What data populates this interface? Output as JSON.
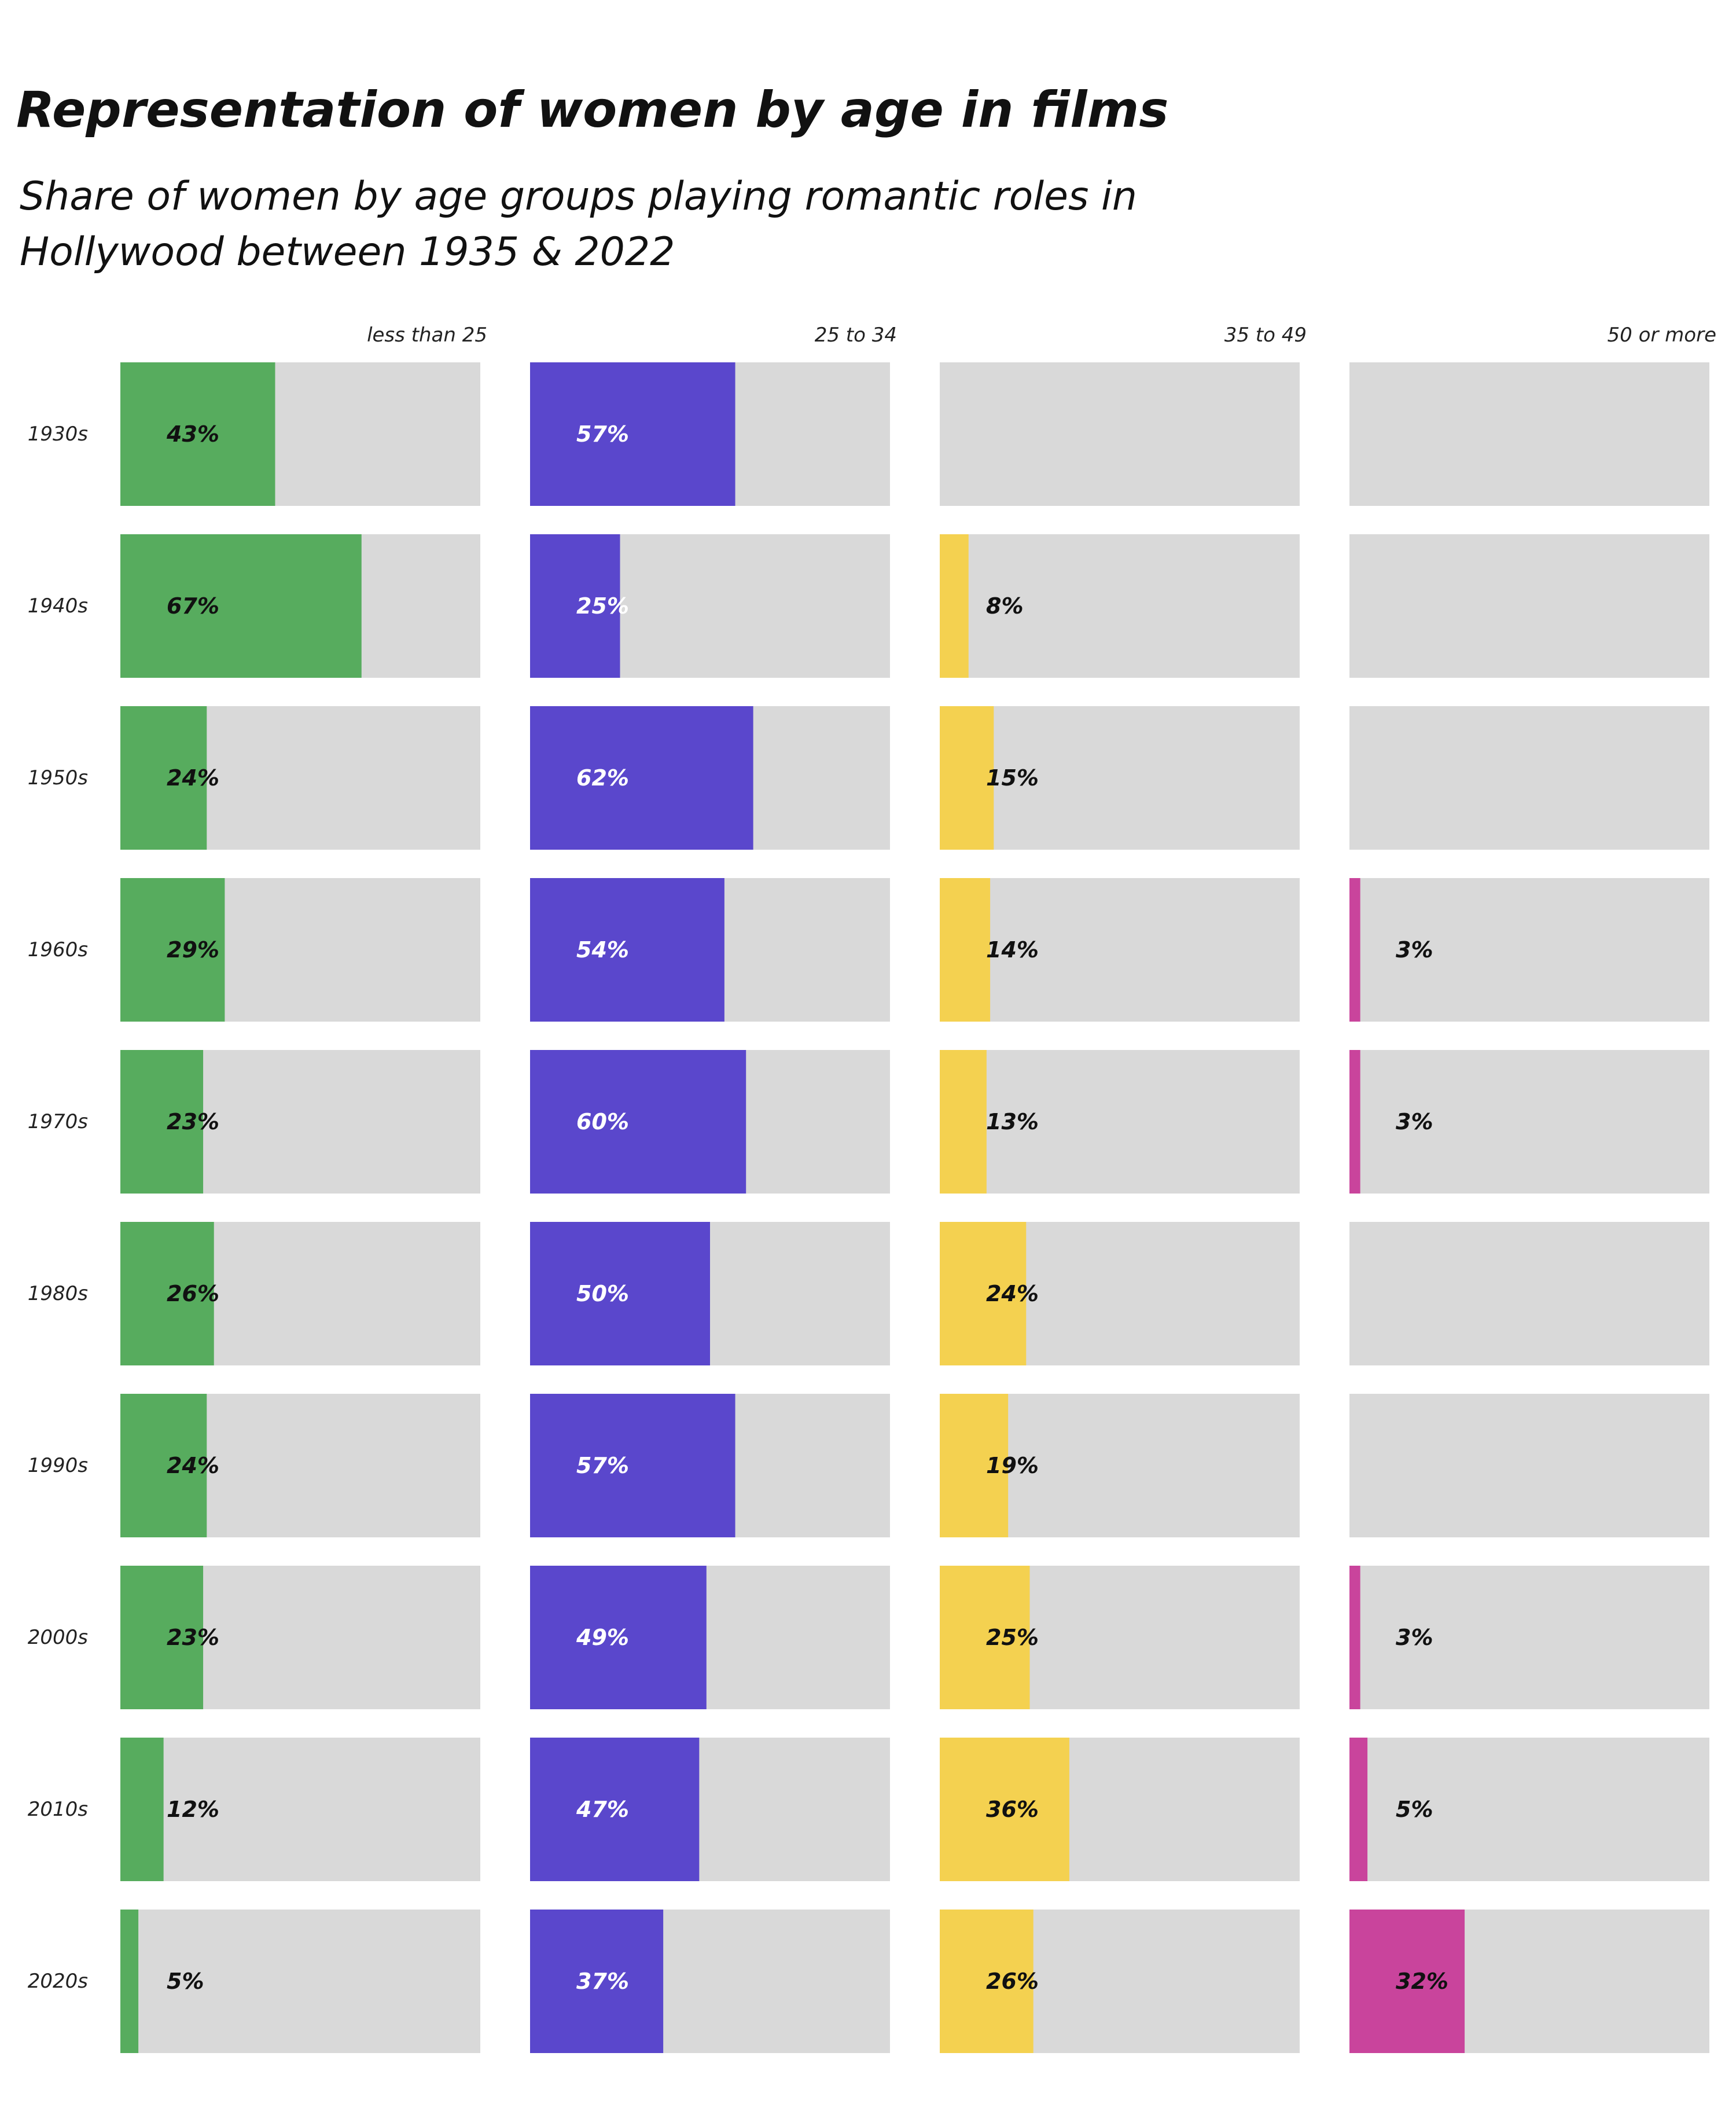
{
  "title": "Representation of women by age in films",
  "subtitle": "Share of women by age groups playing romantic roles in Hollywood between 1935 & 2022",
  "chart_data": {
    "type": "bar",
    "orientation": "horizontal",
    "layout": "small-multiples grid (rows = decades, columns = age groups)",
    "xlim": [
      0,
      100
    ],
    "unit": "%",
    "grid": false,
    "background_bar_color": "#d9d9d9",
    "decades": [
      "1930s",
      "1940s",
      "1950s",
      "1960s",
      "1970s",
      "1980s",
      "1990s",
      "2000s",
      "2010s",
      "2020s"
    ],
    "series": [
      {
        "name": "less than 25",
        "color": "#57ac5e",
        "label_color": "#111111",
        "values": [
          43,
          67,
          24,
          29,
          23,
          26,
          24,
          23,
          12,
          5
        ],
        "labels": [
          "43%",
          "67%",
          "24%",
          "29%",
          "23%",
          "26%",
          "24%",
          "23%",
          "12%",
          "5%"
        ]
      },
      {
        "name": "25 to 34",
        "color": "#5a47cc",
        "label_color": "#ffffff",
        "values": [
          57,
          25,
          62,
          54,
          60,
          50,
          57,
          49,
          47,
          37
        ],
        "labels": [
          "57%",
          "25%",
          "62%",
          "54%",
          "60%",
          "50%",
          "57%",
          "49%",
          "47%",
          "37%"
        ]
      },
      {
        "name": "35 to 49",
        "color": "#f4d150",
        "label_color": "#111111",
        "values": [
          null,
          8,
          15,
          14,
          13,
          24,
          19,
          25,
          36,
          26
        ],
        "labels": [
          "",
          "8%",
          "15%",
          "14%",
          "13%",
          "24%",
          "19%",
          "25%",
          "36%",
          "26%"
        ]
      },
      {
        "name": "50 or more",
        "color": "#c9449c",
        "label_color": "#111111",
        "values": [
          null,
          null,
          null,
          3,
          3,
          null,
          null,
          3,
          5,
          32
        ],
        "labels": [
          "",
          "",
          "",
          "3%",
          "3%",
          "",
          "",
          "3%",
          "5%",
          "32%"
        ]
      }
    ]
  }
}
